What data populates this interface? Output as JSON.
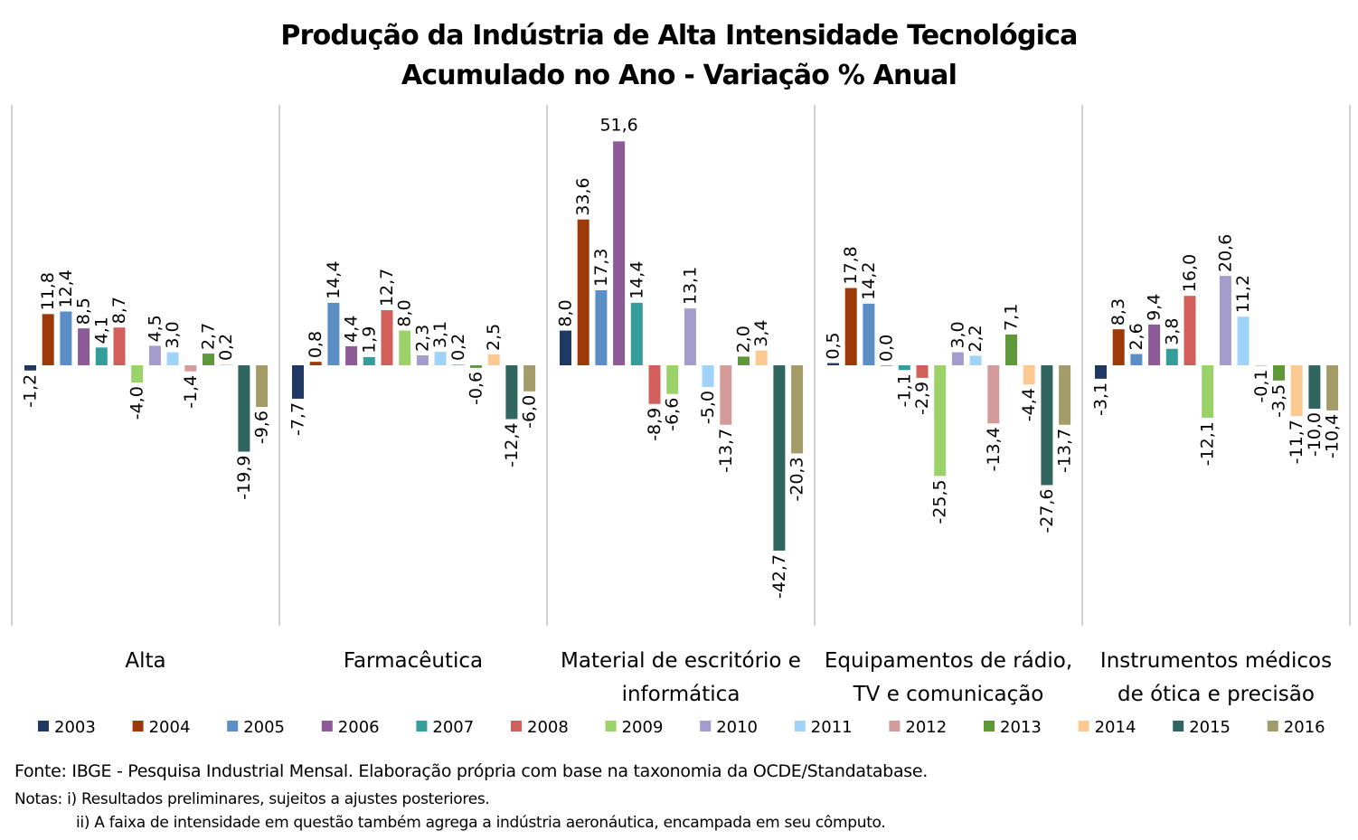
{
  "title_line1": "Produção da Indústria de Alta Intensidade Tecnológica",
  "title_line2": "Acumulado no Ano - Variação % Anual",
  "footer": {
    "fonte": "Fonte:  IBGE - Pesquisa Industrial Mensal. Elaboração própria com base na taxonomia da OCDE/Standatabase.",
    "nota1": "Notas: i) Resultados preliminares, sujeitos a ajustes posteriores.",
    "nota2": "ii) A faixa de intensidade em questão também agrega a indústria aeronáutica, encampada em seu cômputo."
  },
  "chart_data": {
    "type": "bar",
    "title": "Produção da Indústria de Alta Intensidade Tecnológica Acumulado no Ano - Variação % Anual",
    "categories": [
      [
        "Alta"
      ],
      [
        "Farmacêutica"
      ],
      [
        "Material de escritório e",
        "informática"
      ],
      [
        "Equipamentos de rádio,",
        "TV e comunicação"
      ],
      [
        "Instrumentos médicos",
        "de ótica e precisão"
      ]
    ],
    "ylim": [
      -59.5,
      60
    ],
    "grid": false,
    "legend_position": "bottom",
    "series": [
      {
        "name": "2003",
        "color": "#1f3864",
        "values": [
          -1.2,
          -7.7,
          8.0,
          0.5,
          -3.1
        ]
      },
      {
        "name": "2004",
        "color": "#9e3909",
        "values": [
          11.8,
          0.8,
          33.6,
          17.8,
          8.3
        ]
      },
      {
        "name": "2005",
        "color": "#5b8ec4",
        "values": [
          12.4,
          14.4,
          17.3,
          14.2,
          2.6
        ]
      },
      {
        "name": "2006",
        "color": "#8d5b97",
        "values": [
          8.5,
          4.4,
          51.6,
          0.0,
          9.4
        ]
      },
      {
        "name": "2007",
        "color": "#359e9a",
        "values": [
          4.1,
          1.9,
          14.4,
          -1.1,
          3.8
        ]
      },
      {
        "name": "2008",
        "color": "#d1605c",
        "values": [
          8.7,
          12.7,
          -8.9,
          -2.9,
          16.0
        ]
      },
      {
        "name": "2009",
        "color": "#9bd26a",
        "values": [
          -4.0,
          8.0,
          -6.6,
          -25.5,
          -12.1
        ]
      },
      {
        "name": "2010",
        "color": "#a39ccc",
        "values": [
          4.5,
          2.3,
          13.1,
          3.0,
          20.6
        ]
      },
      {
        "name": "2011",
        "color": "#9fd3f7",
        "values": [
          3.0,
          3.1,
          -5.0,
          2.2,
          11.2
        ]
      },
      {
        "name": "2012",
        "color": "#d39c9b",
        "values": [
          -1.4,
          0.2,
          -13.7,
          -13.4,
          -0.1
        ]
      },
      {
        "name": "2013",
        "color": "#5e9839",
        "values": [
          2.7,
          -0.6,
          2.0,
          7.1,
          -3.5
        ]
      },
      {
        "name": "2014",
        "color": "#fcc993",
        "values": [
          0.2,
          2.5,
          3.4,
          -4.4,
          -11.7
        ]
      },
      {
        "name": "2015",
        "color": "#30665f",
        "values": [
          -19.9,
          -12.4,
          -42.7,
          -27.6,
          -10.0
        ]
      },
      {
        "name": "2016",
        "color": "#a39c69",
        "values": [
          -9.6,
          -6.0,
          -20.3,
          -13.7,
          -10.4
        ]
      }
    ]
  }
}
